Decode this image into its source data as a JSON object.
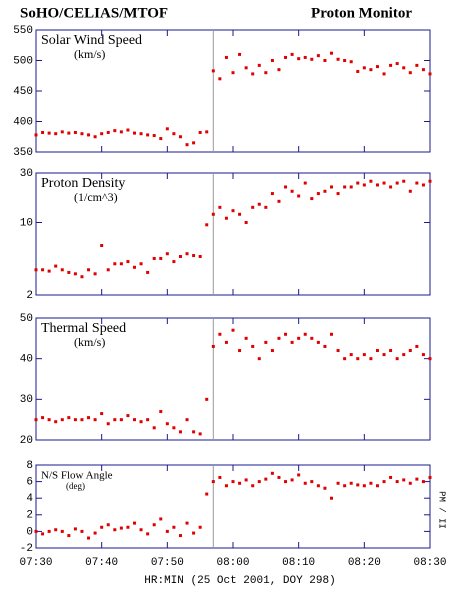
{
  "header": {
    "title_left": "SoHO/CELIAS/MTOF",
    "title_right": "Proton Monitor",
    "side_label": "PM / II"
  },
  "x_label": "HR:MIN (25 Oct 2001, DOY 298)",
  "xlim": [
    "07:30",
    "08:30"
  ],
  "xticks": [
    "07:30",
    "07:40",
    "07:50",
    "08:00",
    "08:10",
    "08:20",
    "08:30"
  ],
  "vline": "07:57",
  "x": [
    "07:30",
    "07:31",
    "07:32",
    "07:33",
    "07:34",
    "07:35",
    "07:36",
    "07:37",
    "07:38",
    "07:39",
    "07:40",
    "07:41",
    "07:42",
    "07:43",
    "07:44",
    "07:45",
    "07:46",
    "07:47",
    "07:48",
    "07:49",
    "07:50",
    "07:51",
    "07:52",
    "07:53",
    "07:54",
    "07:55",
    "07:56",
    "07:57",
    "07:58",
    "07:59",
    "08:00",
    "08:01",
    "08:02",
    "08:03",
    "08:04",
    "08:05",
    "08:06",
    "08:07",
    "08:08",
    "08:09",
    "08:10",
    "08:11",
    "08:12",
    "08:13",
    "08:14",
    "08:15",
    "08:16",
    "08:17",
    "08:18",
    "08:19",
    "08:20",
    "08:21",
    "08:22",
    "08:23",
    "08:24",
    "08:25",
    "08:26",
    "08:27",
    "08:28",
    "08:29",
    "08:30"
  ],
  "chart_data": [
    {
      "type": "scatter",
      "title": "Solar Wind Speed",
      "subtitle": "(km/s)",
      "color": "#e00000",
      "log": false,
      "ylim": [
        350,
        550
      ],
      "yticks": [
        350,
        400,
        450,
        500,
        550
      ],
      "values": [
        378,
        382,
        381,
        380,
        383,
        381,
        382,
        380,
        378,
        375,
        380,
        382,
        385,
        383,
        386,
        381,
        380,
        378,
        377,
        372,
        388,
        380,
        375,
        362,
        365,
        382,
        383,
        483,
        470,
        505,
        480,
        510,
        488,
        478,
        492,
        480,
        500,
        485,
        505,
        510,
        503,
        505,
        502,
        508,
        500,
        512,
        502,
        500,
        498,
        482,
        488,
        485,
        490,
        478,
        492,
        495,
        488,
        480,
        492,
        485,
        478
      ]
    },
    {
      "type": "scatter",
      "title": "Proton Density",
      "subtitle": "(1/cm^3)",
      "color": "#e00000",
      "log": true,
      "ylim": [
        2,
        30
      ],
      "yticks": [
        2,
        10,
        30
      ],
      "values": [
        3.5,
        3.5,
        3.4,
        3.8,
        3.5,
        3.3,
        3.2,
        3.0,
        3.5,
        3.2,
        6.0,
        3.5,
        4.0,
        4.0,
        4.2,
        3.7,
        4.0,
        3.3,
        4.5,
        4.5,
        5.0,
        4.2,
        4.7,
        5.0,
        4.8,
        4.7,
        9.5,
        12,
        14,
        11,
        13,
        12,
        10,
        14,
        15,
        14,
        19,
        16,
        22,
        20,
        18,
        24,
        17,
        19,
        20,
        22,
        19,
        22,
        22,
        24,
        23,
        25,
        23,
        24,
        22,
        24,
        25,
        20,
        24,
        23,
        25
      ]
    },
    {
      "type": "scatter",
      "title": "Thermal Speed",
      "subtitle": "(km/s)",
      "color": "#e00000",
      "log": false,
      "ylim": [
        20,
        50
      ],
      "yticks": [
        20,
        30,
        40,
        50
      ],
      "values": [
        25,
        25.5,
        25,
        24.5,
        25,
        25.5,
        25,
        25,
        25.5,
        25,
        26.5,
        24,
        25,
        25,
        26,
        25,
        24.5,
        25,
        23,
        27,
        24,
        23,
        22,
        25,
        22,
        21.5,
        30,
        43,
        46,
        44,
        47,
        42,
        45,
        43,
        40,
        44,
        42,
        45,
        46,
        44,
        45,
        46,
        45,
        44,
        43,
        46,
        42,
        40,
        41,
        40,
        41,
        40,
        42,
        41,
        42,
        40,
        41,
        42,
        43,
        41,
        40
      ]
    },
    {
      "type": "scatter",
      "title": "N/S Flow Angle",
      "subtitle": "(deg)",
      "color": "#e00000",
      "log": false,
      "small": true,
      "ylim": [
        -2,
        8
      ],
      "yticks": [
        -2,
        0,
        2,
        4,
        6,
        8
      ],
      "values": [
        0,
        -0.3,
        0,
        0.2,
        0,
        -0.5,
        0.3,
        0,
        -0.8,
        -0.2,
        0.5,
        0.8,
        0.2,
        0.4,
        0.5,
        1,
        0.2,
        -0.3,
        0.8,
        1.5,
        0,
        0.5,
        -0.5,
        1,
        -0.2,
        0.5,
        4.5,
        6,
        6.5,
        5.5,
        6,
        5.8,
        6.2,
        5.5,
        6,
        6.3,
        7,
        6.5,
        6,
        6.2,
        6.8,
        5.8,
        6,
        5.5,
        5.2,
        4,
        5.8,
        5.5,
        5.8,
        5.6,
        5.5,
        5.8,
        5.5,
        6,
        6.5,
        6,
        6.2,
        5.8,
        6.3,
        6,
        6.5
      ]
    }
  ]
}
